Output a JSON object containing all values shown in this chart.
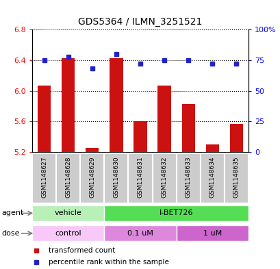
{
  "title": "GDS5364 / ILMN_3251521",
  "samples": [
    "GSM1148627",
    "GSM1148628",
    "GSM1148629",
    "GSM1148630",
    "GSM1148631",
    "GSM1148632",
    "GSM1148633",
    "GSM1148634",
    "GSM1148635"
  ],
  "transformed_counts": [
    6.07,
    6.43,
    5.25,
    6.43,
    5.6,
    6.07,
    5.83,
    5.3,
    5.57
  ],
  "percentile_ranks": [
    75,
    78,
    68,
    80,
    72,
    75,
    75,
    72,
    72
  ],
  "ylim_left": [
    5.2,
    6.8
  ],
  "ylim_right": [
    0,
    100
  ],
  "yticks_left": [
    5.2,
    5.6,
    6.0,
    6.4,
    6.8
  ],
  "yticks_right": [
    0,
    25,
    50,
    75,
    100
  ],
  "bar_color": "#cc1111",
  "dot_color": "#2222cc",
  "bar_bottom": 5.2,
  "agent_groups": [
    {
      "label": "vehicle",
      "start": 0,
      "end": 3,
      "color": "#b8f0b8"
    },
    {
      "label": "I-BET726",
      "start": 3,
      "end": 9,
      "color": "#55dd55"
    }
  ],
  "dose_groups": [
    {
      "label": "control",
      "start": 0,
      "end": 3,
      "color": "#f8c8f8"
    },
    {
      "label": "0.1 uM",
      "start": 3,
      "end": 6,
      "color": "#dd88dd"
    },
    {
      "label": "1 uM",
      "start": 6,
      "end": 9,
      "color": "#cc66cc"
    }
  ],
  "legend_items": [
    {
      "label": "transformed count",
      "color": "#cc1111"
    },
    {
      "label": "percentile rank within the sample",
      "color": "#2222cc"
    }
  ]
}
